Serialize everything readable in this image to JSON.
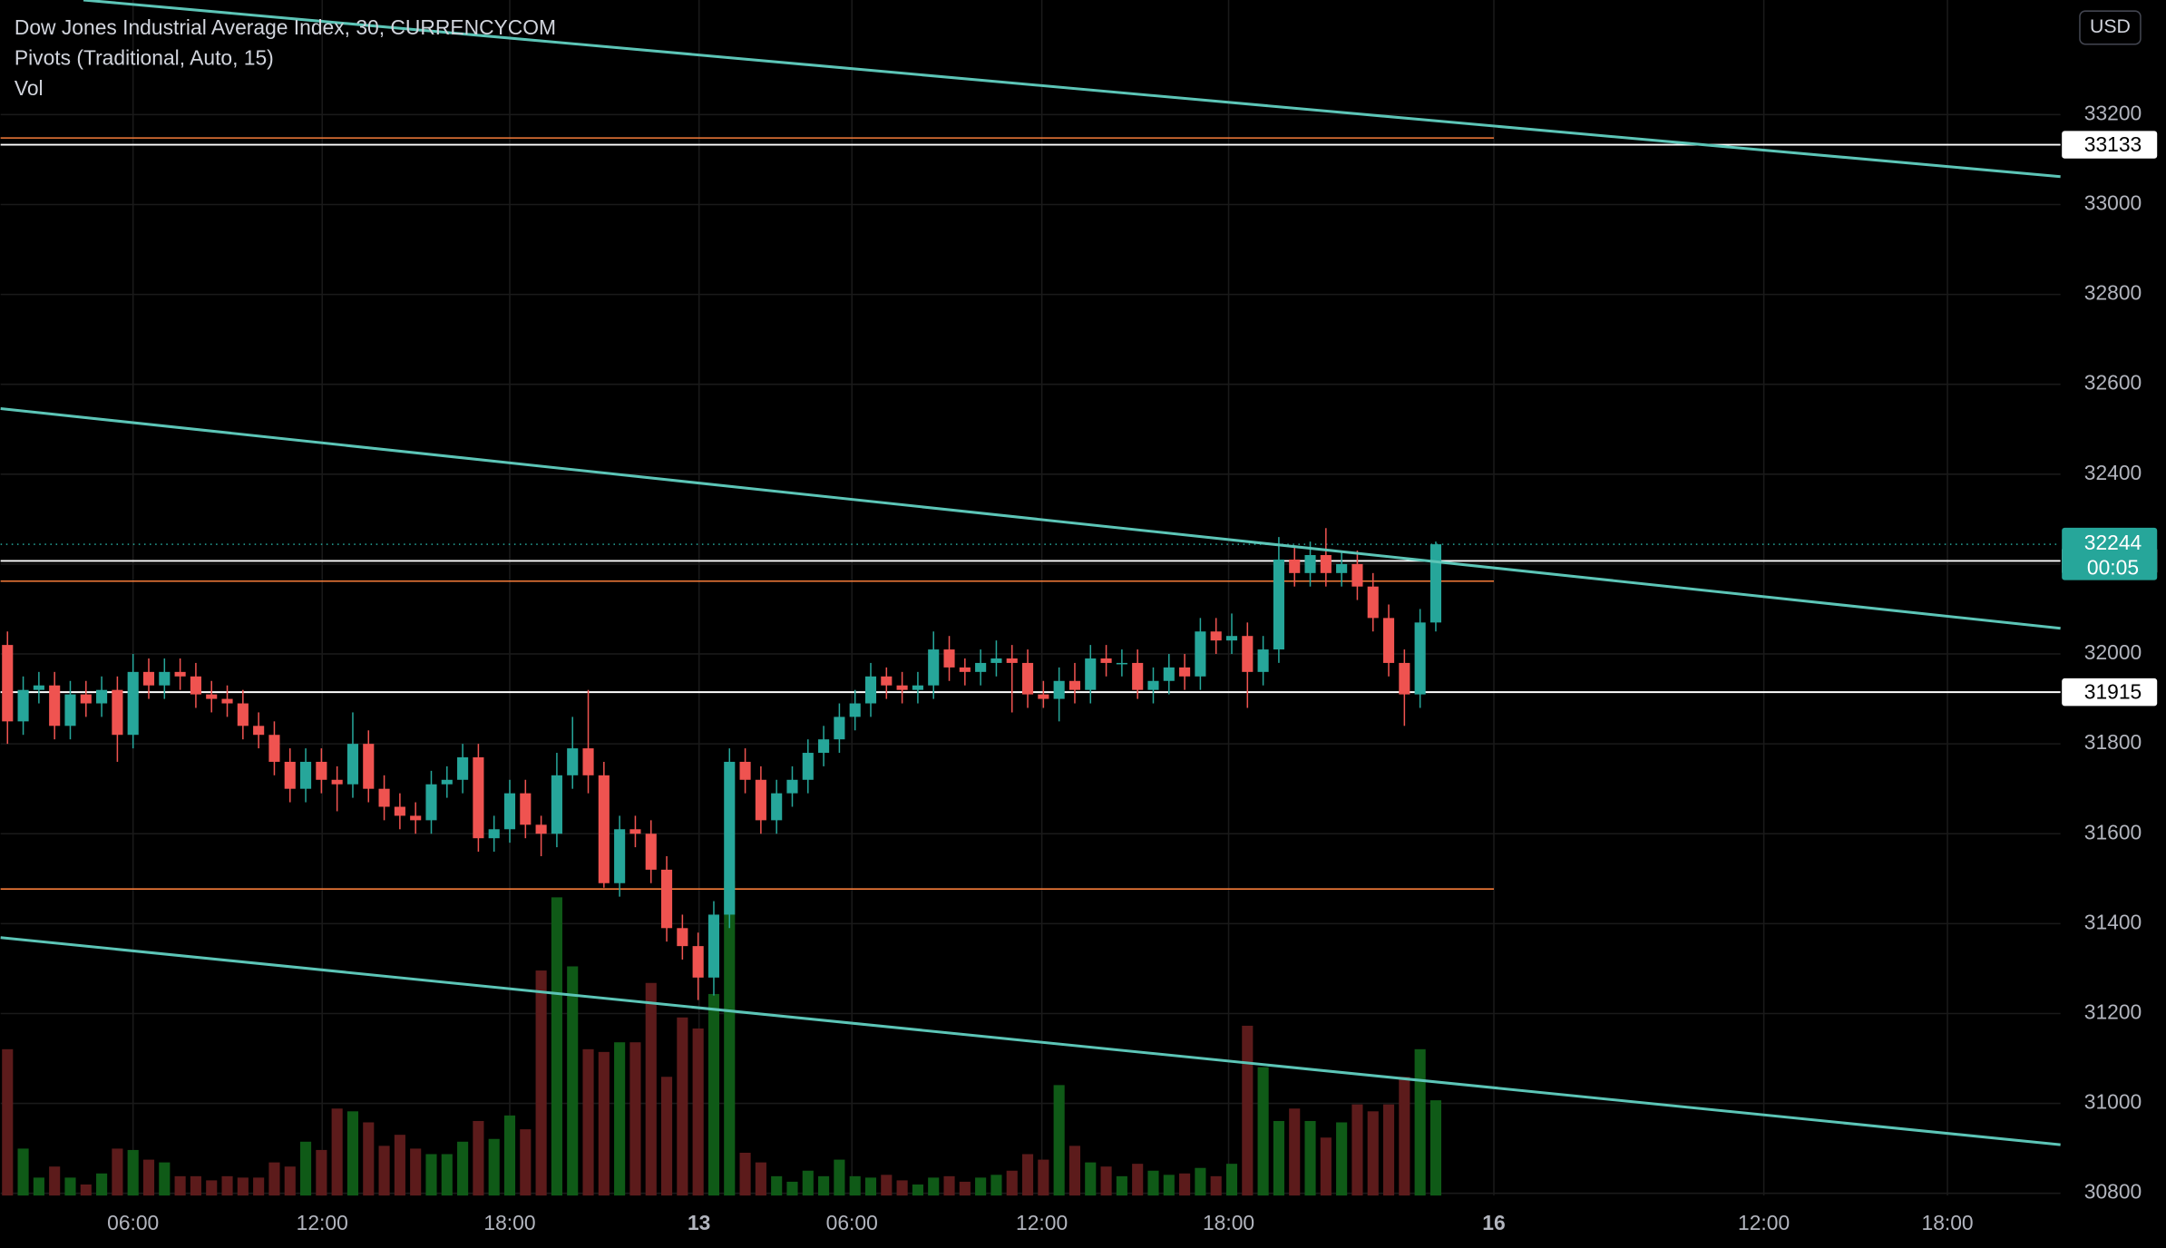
{
  "chart_data": {
    "type": "candlestick",
    "title": "Dow Jones Industrial Average Index, 30, CURRENCYCOM",
    "indicators": [
      "Pivots (Traditional, Auto, 15)",
      "Vol"
    ],
    "currency": "USD",
    "up_color": "#26a69a",
    "down_color": "#ef5350",
    "volume_up_color": "#0f5a17",
    "volume_down_color": "#5c1b1b",
    "open": [
      32020,
      31850,
      31920,
      31930,
      31840,
      31910,
      31890,
      31920,
      31820,
      31960,
      31930,
      31960,
      31950,
      31910,
      31900,
      31890,
      31840,
      31820,
      31760,
      31700,
      31760,
      31720,
      31710,
      31800,
      31700,
      31660,
      31640,
      31630,
      31710,
      31720,
      31770,
      31590,
      31610,
      31690,
      31620,
      31600,
      31730,
      31790,
      31730,
      31490,
      31610,
      31600,
      31520,
      31390,
      31350,
      31280,
      31420,
      31760,
      31720,
      31630,
      31690,
      31720,
      31780,
      31810,
      31860,
      31890,
      31950,
      31930,
      31920,
      31930,
      32010,
      31970,
      31960,
      31980,
      31990,
      31980,
      31910,
      31900,
      31940,
      31920,
      31990,
      31980,
      31980,
      31920,
      31940,
      31970,
      31950,
      32050,
      32030,
      32040,
      31960,
      32010,
      32210,
      32180,
      32220,
      32180,
      32200,
      32150,
      32080,
      31980,
      31910,
      32070
    ],
    "high": [
      32050,
      31950,
      31960,
      31960,
      31940,
      31940,
      31950,
      31950,
      32000,
      31990,
      31990,
      31990,
      31980,
      31940,
      31930,
      31920,
      31870,
      31850,
      31790,
      31790,
      31790,
      31750,
      31870,
      31830,
      31730,
      31690,
      31670,
      31740,
      31750,
      31800,
      31800,
      31640,
      31720,
      31720,
      31640,
      31780,
      31860,
      31920,
      31760,
      31640,
      31640,
      31630,
      31550,
      31420,
      31380,
      31450,
      31790,
      31790,
      31750,
      31720,
      31750,
      31810,
      31840,
      31890,
      31920,
      31980,
      31970,
      31960,
      31960,
      32050,
      32040,
      31990,
      32010,
      32030,
      32020,
      32010,
      31940,
      31970,
      31980,
      32020,
      32020,
      32010,
      32010,
      31970,
      32000,
      32000,
      32080,
      32080,
      32090,
      32070,
      32040,
      32260,
      32240,
      32250,
      32280,
      32230,
      32230,
      32180,
      32110,
      32010,
      32100,
      32250
    ],
    "low": [
      31800,
      31820,
      31890,
      31810,
      31810,
      31860,
      31860,
      31760,
      31790,
      31900,
      31900,
      31920,
      31880,
      31870,
      31860,
      31810,
      31790,
      31730,
      31670,
      31670,
      31690,
      31650,
      31680,
      31670,
      31630,
      31610,
      31600,
      31600,
      31680,
      31690,
      31560,
      31560,
      31580,
      31590,
      31550,
      31570,
      31700,
      31690,
      31480,
      31460,
      31570,
      31490,
      31360,
      31320,
      31230,
      31240,
      31390,
      31690,
      31600,
      31600,
      31660,
      31690,
      31750,
      31780,
      31830,
      31860,
      31900,
      31890,
      31890,
      31900,
      31940,
      31930,
      31930,
      31950,
      31870,
      31880,
      31880,
      31850,
      31890,
      31890,
      31950,
      31950,
      31900,
      31890,
      31910,
      31920,
      31920,
      32000,
      32000,
      31880,
      31930,
      31980,
      32150,
      32150,
      32150,
      32150,
      32120,
      32050,
      31950,
      31840,
      31880,
      32050
    ],
    "close": [
      31850,
      31920,
      31930,
      31840,
      31910,
      31890,
      31920,
      31820,
      31960,
      31930,
      31960,
      31950,
      31910,
      31900,
      31890,
      31840,
      31820,
      31760,
      31700,
      31760,
      31720,
      31710,
      31800,
      31700,
      31660,
      31640,
      31630,
      31710,
      31720,
      31770,
      31590,
      31610,
      31690,
      31620,
      31600,
      31730,
      31790,
      31730,
      31490,
      31610,
      31600,
      31520,
      31390,
      31350,
      31280,
      31420,
      31760,
      31720,
      31630,
      31690,
      31720,
      31780,
      31810,
      31860,
      31890,
      31950,
      31930,
      31920,
      31930,
      32010,
      31970,
      31960,
      31980,
      31990,
      31980,
      31910,
      31900,
      31940,
      31920,
      31990,
      31980,
      31980,
      31920,
      31940,
      31970,
      31950,
      32050,
      32030,
      32040,
      31960,
      32010,
      32210,
      32180,
      32220,
      32180,
      32200,
      32150,
      32080,
      31980,
      31910,
      32070,
      32244
    ],
    "volume": [
      106,
      34,
      13,
      21,
      13,
      8,
      16,
      34,
      33,
      26,
      24,
      14,
      14,
      11,
      14,
      13,
      13,
      24,
      21,
      39,
      33,
      63,
      61,
      53,
      36,
      44,
      34,
      30,
      30,
      39,
      54,
      41,
      58,
      48,
      163,
      216,
      166,
      106,
      104,
      111,
      111,
      154,
      86,
      129,
      121,
      146,
      228,
      31,
      24,
      14,
      10,
      18,
      14,
      26,
      14,
      13,
      15,
      11,
      8,
      13,
      14,
      10,
      13,
      15,
      18,
      30,
      26,
      80,
      36,
      24,
      21,
      14,
      23,
      18,
      15,
      16,
      20,
      14,
      23,
      123,
      93,
      54,
      63,
      54,
      42,
      53,
      66,
      61,
      66,
      86,
      106,
      69
    ],
    "xlim": [
      -0.44,
      130.8
    ],
    "xticks": [
      {
        "value": 8.0,
        "label": "06:00"
      },
      {
        "value": 20.05,
        "label": "12:00"
      },
      {
        "value": 32.0,
        "label": "18:00"
      },
      {
        "value": 44.06,
        "label": "13"
      },
      {
        "value": 53.8,
        "label": "06:00"
      },
      {
        "value": 65.9,
        "label": "12:00"
      },
      {
        "value": 77.8,
        "label": "18:00"
      },
      {
        "value": 94.7,
        "label": "16"
      },
      {
        "value": 111.9,
        "label": "12:00"
      },
      {
        "value": 123.6,
        "label": "18:00"
      }
    ],
    "ylim": [
      30795,
      33455
    ],
    "yticks": [
      30800,
      31000,
      31200,
      31400,
      31600,
      31800,
      32000,
      32200,
      32400,
      32600,
      32800,
      33000,
      33200
    ],
    "grid": true,
    "pivot_levels": {
      "values": [
        33148,
        32162,
        31477
      ],
      "end": 94.7,
      "color": "#f57c3a"
    },
    "price_lines": [
      33133,
      32207,
      31915
    ],
    "last_price": 32244,
    "countdown": "00:05",
    "trendline_color": "#5cc5b7",
    "trendlines": [
      {
        "x": [
          4.84,
          130.8
        ],
        "y": [
          33455,
          33062
        ]
      },
      {
        "x": [
          -0.44,
          130.8
        ],
        "y": [
          32546,
          32057
        ]
      },
      {
        "x": [
          -0.44,
          130.8
        ],
        "y": [
          31369,
          30908
        ]
      }
    ]
  }
}
